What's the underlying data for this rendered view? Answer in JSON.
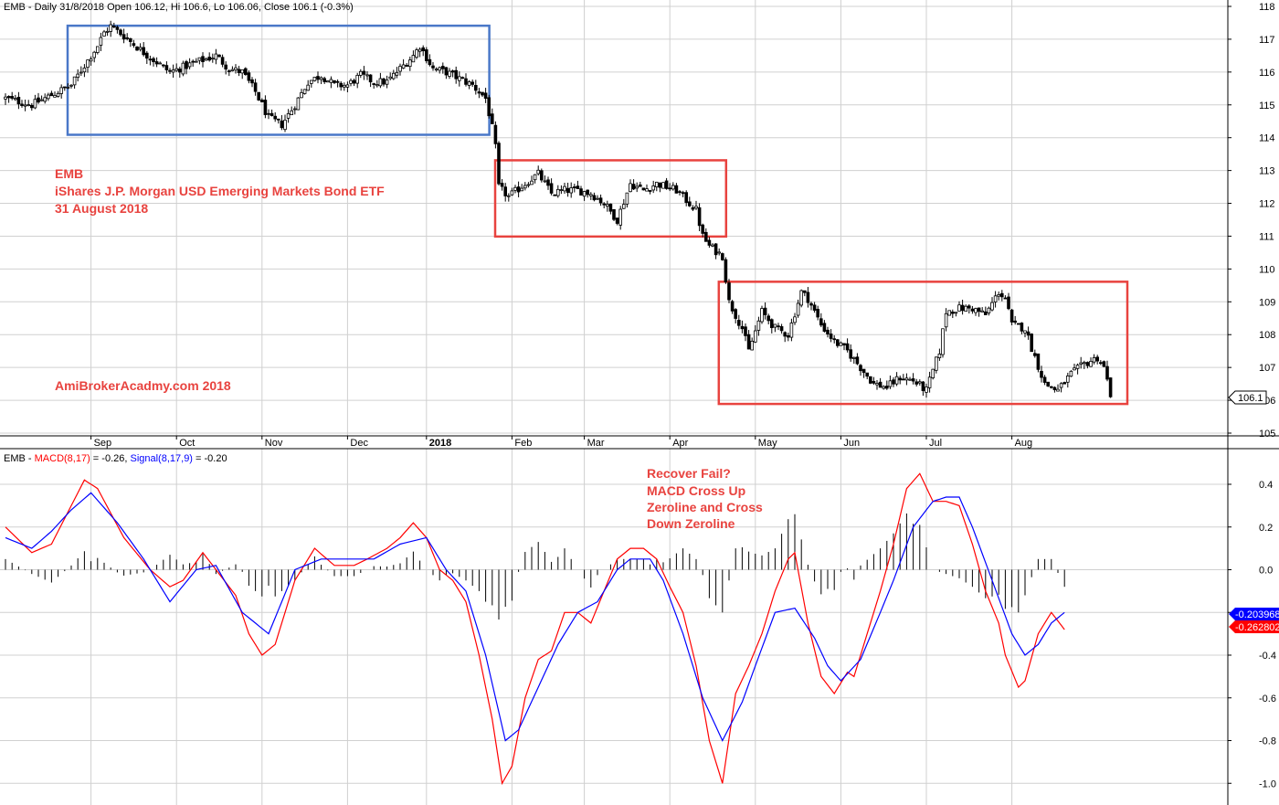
{
  "colors": {
    "up_fill": "#ffffff",
    "down_fill": "#000000",
    "candle_stroke": "#000000",
    "blue_box": "#4a78c8",
    "red_box": "#e8433f",
    "macd_line": "#ff0000",
    "signal_line": "#0000ff",
    "histogram": "#000000",
    "grid": "#d0d0d0",
    "annotation": "#e8433f"
  },
  "price_panel": {
    "header": "EMB - Daily 31/8/2018 Open 106.12, Hi 106.6, Lo 106.06, Close 106.1 (-0.3%)",
    "last_price_badge": "106.1",
    "y_ticks": [
      "118",
      "117",
      "116",
      "115",
      "114",
      "113",
      "112",
      "111",
      "110",
      "109",
      "108",
      "107",
      "106",
      "105"
    ],
    "annotation_lines": [
      "EMB",
      "iShares J.P. Morgan USD Emerging Markets Bond ETF",
      "31 August 2018"
    ],
    "watermark": "AmiBrokerAcadmy.com  2018"
  },
  "macd_panel": {
    "header_prefix": "EMB - ",
    "macd_label": "MACD(8,17)",
    "macd_value_text": " = -0.26, ",
    "signal_label": "Signal(8,17,9)",
    "signal_value_text": " = -0.20",
    "signal_badge": "-0.203968",
    "macd_badge": "-0.262802",
    "y_ticks": [
      "0.4",
      "0.2",
      "0.0",
      "-0.2",
      "-0.4",
      "-0.6",
      "-0.8",
      "-1.0"
    ],
    "annotation_lines": [
      "Recover Fail?",
      "MACD Cross Up",
      "Zeroline and Cross",
      "Down Zeroline"
    ]
  },
  "x_axis": {
    "labels": [
      "Sep",
      "Oct",
      "Nov",
      "Dec",
      "2018",
      "Feb",
      "Mar",
      "Apr",
      "May",
      "Jun",
      "Jul",
      "Aug"
    ]
  },
  "chart_data": [
    {
      "type": "candlestick",
      "title": "EMB - Daily 31/8/2018 Open 106.12, Hi 106.6, Lo 106.06, Close 106.1 (-0.3%)",
      "ylim": [
        104.7,
        118.3
      ],
      "last": {
        "open": 106.12,
        "high": 106.6,
        "low": 106.06,
        "close": 106.1
      },
      "price_path": [
        [
          0,
          115.2
        ],
        [
          8,
          115.0
        ],
        [
          14,
          115.3
        ],
        [
          20,
          115.6
        ],
        [
          24,
          116.2
        ],
        [
          28,
          116.8
        ],
        [
          30,
          117.2
        ],
        [
          32,
          117.4
        ],
        [
          36,
          117.1
        ],
        [
          42,
          116.6
        ],
        [
          50,
          116.0
        ],
        [
          58,
          116.3
        ],
        [
          64,
          116.5
        ],
        [
          68,
          116.1
        ],
        [
          72,
          116.0
        ],
        [
          76,
          115.4
        ],
        [
          80,
          114.6
        ],
        [
          84,
          114.4
        ],
        [
          88,
          115.0
        ],
        [
          92,
          115.7
        ],
        [
          96,
          115.9
        ],
        [
          100,
          115.6
        ],
        [
          104,
          115.6
        ],
        [
          108,
          115.9
        ],
        [
          112,
          115.7
        ],
        [
          116,
          115.7
        ],
        [
          120,
          116.1
        ],
        [
          124,
          116.5
        ],
        [
          126,
          116.8
        ],
        [
          130,
          116.1
        ],
        [
          134,
          116.0
        ],
        [
          138,
          115.8
        ],
        [
          142,
          115.6
        ],
        [
          146,
          115.2
        ],
        [
          148,
          114.3
        ],
        [
          149,
          113.7
        ],
        [
          150,
          112.5
        ],
        [
          153,
          112.2
        ],
        [
          158,
          112.6
        ],
        [
          162,
          112.9
        ],
        [
          166,
          112.3
        ],
        [
          170,
          112.4
        ],
        [
          174,
          112.4
        ],
        [
          178,
          112.3
        ],
        [
          182,
          112.0
        ],
        [
          186,
          111.5
        ],
        [
          190,
          112.6
        ],
        [
          194,
          112.4
        ],
        [
          198,
          112.6
        ],
        [
          204,
          112.4
        ],
        [
          210,
          111.8
        ],
        [
          212,
          111.0
        ],
        [
          214,
          110.7
        ],
        [
          218,
          110.4
        ],
        [
          220,
          109.0
        ],
        [
          224,
          108.2
        ],
        [
          226,
          107.5
        ],
        [
          230,
          108.7
        ],
        [
          234,
          108.2
        ],
        [
          238,
          108.0
        ],
        [
          242,
          109.3
        ],
        [
          244,
          109.1
        ],
        [
          248,
          108.3
        ],
        [
          252,
          107.8
        ],
        [
          256,
          107.5
        ],
        [
          260,
          107.0
        ],
        [
          264,
          106.5
        ],
        [
          268,
          106.4
        ],
        [
          272,
          106.7
        ],
        [
          276,
          106.6
        ],
        [
          280,
          106.3
        ],
        [
          284,
          107.5
        ],
        [
          286,
          108.7
        ],
        [
          290,
          108.8
        ],
        [
          294,
          108.8
        ],
        [
          298,
          108.6
        ],
        [
          302,
          109.3
        ],
        [
          304,
          109.1
        ],
        [
          306,
          108.3
        ],
        [
          310,
          108.2
        ],
        [
          312,
          107.6
        ],
        [
          316,
          106.5
        ],
        [
          320,
          106.3
        ],
        [
          324,
          106.8
        ],
        [
          328,
          107.1
        ],
        [
          332,
          107.3
        ],
        [
          334,
          107.0
        ],
        [
          336,
          106.2
        ]
      ],
      "annotation_boxes": [
        {
          "color": "blue",
          "start_bar": 20,
          "end_bar": 146,
          "low": 114.2,
          "high": 117.3
        },
        {
          "color": "red",
          "start_bar": 150,
          "end_bar": 218,
          "low": 111.1,
          "high": 113.2
        },
        {
          "color": "red",
          "start_bar": 218,
          "end_bar": 340,
          "low": 106.0,
          "high": 109.5
        }
      ]
    },
    {
      "type": "line",
      "title": "MACD(8,17) / Signal(8,17,9)",
      "ylim": [
        -1.05,
        0.52
      ],
      "series": [
        {
          "name": "MACD(8,17)",
          "color": "#ff0000",
          "knots": [
            [
              0,
              0.2
            ],
            [
              8,
              0.08
            ],
            [
              14,
              0.12
            ],
            [
              20,
              0.3
            ],
            [
              24,
              0.42
            ],
            [
              28,
              0.38
            ],
            [
              36,
              0.15
            ],
            [
              44,
              0.0
            ],
            [
              50,
              -0.08
            ],
            [
              54,
              -0.05
            ],
            [
              60,
              0.08
            ],
            [
              64,
              0.0
            ],
            [
              70,
              -0.12
            ],
            [
              74,
              -0.3
            ],
            [
              78,
              -0.4
            ],
            [
              82,
              -0.35
            ],
            [
              88,
              -0.05
            ],
            [
              94,
              0.1
            ],
            [
              100,
              0.02
            ],
            [
              106,
              0.02
            ],
            [
              110,
              0.05
            ],
            [
              116,
              0.1
            ],
            [
              120,
              0.15
            ],
            [
              124,
              0.22
            ],
            [
              128,
              0.15
            ],
            [
              132,
              0.0
            ],
            [
              136,
              -0.05
            ],
            [
              140,
              -0.15
            ],
            [
              144,
              -0.4
            ],
            [
              148,
              -0.7
            ],
            [
              151,
              -1.0
            ],
            [
              154,
              -0.92
            ],
            [
              158,
              -0.6
            ],
            [
              162,
              -0.42
            ],
            [
              166,
              -0.38
            ],
            [
              170,
              -0.2
            ],
            [
              174,
              -0.2
            ],
            [
              178,
              -0.25
            ],
            [
              182,
              -0.1
            ],
            [
              186,
              0.05
            ],
            [
              190,
              0.1
            ],
            [
              194,
              0.1
            ],
            [
              198,
              0.05
            ],
            [
              202,
              -0.08
            ],
            [
              206,
              -0.2
            ],
            [
              210,
              -0.45
            ],
            [
              214,
              -0.8
            ],
            [
              218,
              -1.0
            ],
            [
              222,
              -0.58
            ],
            [
              226,
              -0.45
            ],
            [
              230,
              -0.3
            ],
            [
              234,
              -0.1
            ],
            [
              238,
              0.05
            ],
            [
              240,
              0.08
            ],
            [
              244,
              -0.25
            ],
            [
              248,
              -0.5
            ],
            [
              252,
              -0.58
            ],
            [
              256,
              -0.48
            ],
            [
              258,
              -0.5
            ],
            [
              262,
              -0.3
            ],
            [
              266,
              -0.1
            ],
            [
              270,
              0.12
            ],
            [
              274,
              0.38
            ],
            [
              278,
              0.45
            ],
            [
              282,
              0.32
            ],
            [
              286,
              0.32
            ],
            [
              290,
              0.3
            ],
            [
              294,
              0.12
            ],
            [
              298,
              -0.1
            ],
            [
              302,
              -0.25
            ],
            [
              304,
              -0.4
            ],
            [
              308,
              -0.55
            ],
            [
              310,
              -0.52
            ],
            [
              314,
              -0.3
            ],
            [
              318,
              -0.2
            ],
            [
              322,
              -0.28
            ]
          ]
        },
        {
          "name": "Signal(8,17,9)",
          "color": "#0000ff",
          "knots": [
            [
              0,
              0.15
            ],
            [
              8,
              0.1
            ],
            [
              14,
              0.18
            ],
            [
              20,
              0.28
            ],
            [
              26,
              0.36
            ],
            [
              34,
              0.22
            ],
            [
              42,
              0.05
            ],
            [
              50,
              -0.15
            ],
            [
              58,
              0.0
            ],
            [
              64,
              0.02
            ],
            [
              72,
              -0.2
            ],
            [
              80,
              -0.3
            ],
            [
              88,
              0.0
            ],
            [
              96,
              0.05
            ],
            [
              104,
              0.05
            ],
            [
              112,
              0.05
            ],
            [
              120,
              0.12
            ],
            [
              128,
              0.15
            ],
            [
              134,
              0.0
            ],
            [
              140,
              -0.1
            ],
            [
              146,
              -0.4
            ],
            [
              152,
              -0.8
            ],
            [
              156,
              -0.75
            ],
            [
              162,
              -0.55
            ],
            [
              168,
              -0.35
            ],
            [
              174,
              -0.2
            ],
            [
              180,
              -0.15
            ],
            [
              186,
              0.0
            ],
            [
              190,
              0.05
            ],
            [
              196,
              0.05
            ],
            [
              200,
              -0.05
            ],
            [
              206,
              -0.3
            ],
            [
              212,
              -0.6
            ],
            [
              218,
              -0.8
            ],
            [
              224,
              -0.62
            ],
            [
              228,
              -0.45
            ],
            [
              234,
              -0.2
            ],
            [
              240,
              -0.18
            ],
            [
              246,
              -0.32
            ],
            [
              250,
              -0.45
            ],
            [
              254,
              -0.52
            ],
            [
              260,
              -0.42
            ],
            [
              266,
              -0.2
            ],
            [
              270,
              -0.05
            ],
            [
              276,
              0.2
            ],
            [
              282,
              0.32
            ],
            [
              286,
              0.34
            ],
            [
              290,
              0.34
            ],
            [
              294,
              0.2
            ],
            [
              300,
              -0.05
            ],
            [
              306,
              -0.3
            ],
            [
              310,
              -0.4
            ],
            [
              314,
              -0.35
            ],
            [
              318,
              -0.25
            ],
            [
              322,
              -0.2
            ]
          ]
        }
      ],
      "histogram": "MACD minus Signal"
    }
  ]
}
